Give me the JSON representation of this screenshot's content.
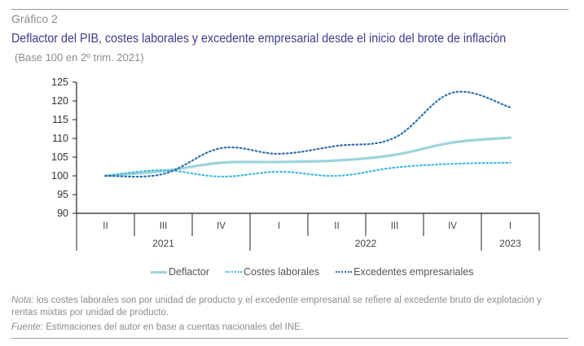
{
  "header": {
    "kicker": "Gráfico 2",
    "title": "Deflactor del PIB, costes laborales y excedente empresarial desde el inicio del brote de inflación",
    "subtitle": "(Base 100 en 2º trim. 2021)"
  },
  "chart_data": {
    "type": "line",
    "title": "Deflactor del PIB, costes laborales y excedente empresarial desde el inicio del brote de inflación",
    "subtitle": "(Base 100 en 2º trim. 2021)",
    "xlabel": "",
    "ylabel": "",
    "ylim": [
      90,
      125
    ],
    "yticks": [
      90,
      95,
      100,
      105,
      110,
      115,
      120,
      125
    ],
    "categories": [
      "II",
      "III",
      "IV",
      "I",
      "II",
      "III",
      "IV",
      "I"
    ],
    "year_groups": [
      {
        "label": "2021",
        "span": 3
      },
      {
        "label": "2022",
        "span": 4
      },
      {
        "label": "2023",
        "span": 1
      }
    ],
    "grid": false,
    "legend_position": "bottom",
    "series": [
      {
        "name": "Deflactor",
        "style": "solid",
        "color": "#9dd4da",
        "values": [
          100,
          101.3,
          103.5,
          103.7,
          104.1,
          105.6,
          108.9,
          110.2
        ]
      },
      {
        "name": "Costes laborales",
        "style": "dotted",
        "color": "#3fb8e0",
        "values": [
          100,
          101.5,
          99.8,
          101.1,
          100.0,
          102.2,
          103.2,
          103.5
        ]
      },
      {
        "name": "Excedentes empresariales",
        "style": "dotted",
        "color": "#2e6fa8",
        "values": [
          100,
          100.5,
          107.4,
          105.9,
          108.0,
          110.2,
          122.2,
          118.3
        ]
      }
    ]
  },
  "notes": {
    "nota_label": "Nota:",
    "nota_text": " los costes laborales son por unidad de producto y el excedente empresarial se refiere al excedente bruto de explotación y rentas mixtas por unidad de producto.",
    "fuente_label": "Fuente:",
    "fuente_text": " Estimaciones del autor en base a cuentas nacionales del INE."
  }
}
